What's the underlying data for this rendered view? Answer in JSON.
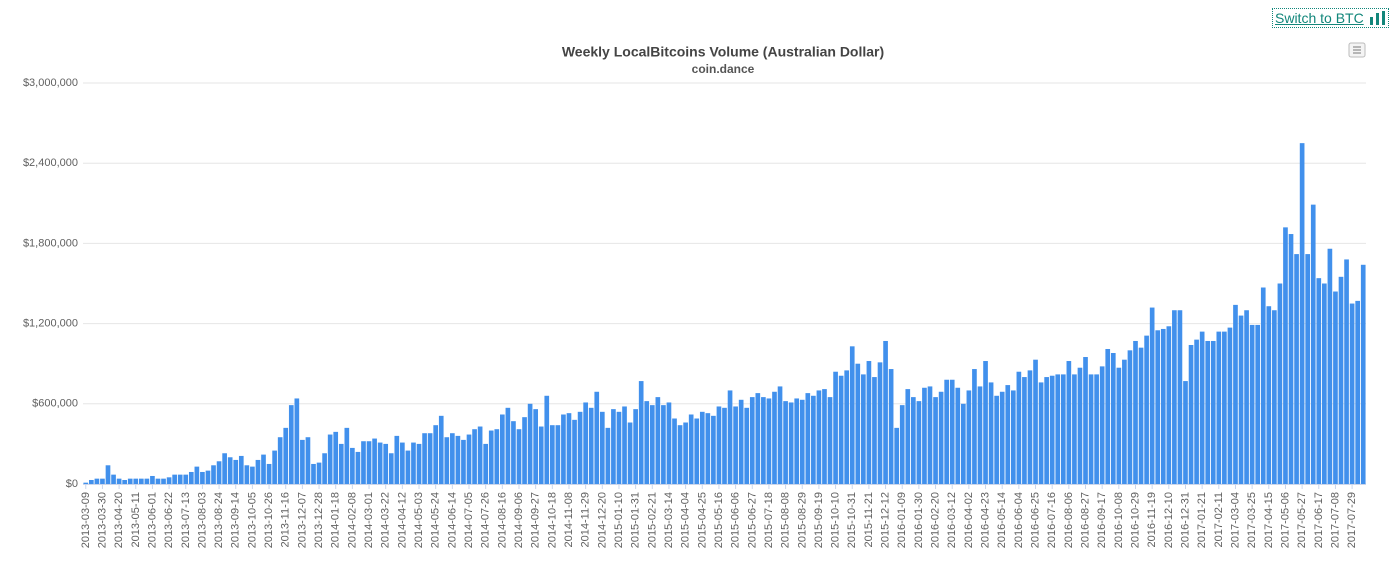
{
  "switch_link": "Switch to BTC",
  "chart_data": {
    "type": "bar",
    "title": "Weekly LocalBitcoins Volume (Australian Dollar)",
    "subtitle": "coin.dance",
    "color": "#4190ec",
    "grid": true,
    "ylim": [
      0,
      3000000
    ],
    "yticks": [
      {
        "value": 0,
        "label": "$0"
      },
      {
        "value": 600000,
        "label": "$600,000"
      },
      {
        "value": 1200000,
        "label": "$1,200,000"
      },
      {
        "value": 1800000,
        "label": "$1,800,000"
      },
      {
        "value": 2400000,
        "label": "$2,400,000"
      },
      {
        "value": 3000000,
        "label": "$3,000,000"
      }
    ],
    "categories": [
      "2013-03-09",
      null,
      null,
      "2013-03-30",
      null,
      null,
      "2013-04-20",
      null,
      null,
      "2013-05-11",
      null,
      null,
      "2013-06-01",
      null,
      null,
      "2013-06-22",
      null,
      null,
      "2013-07-13",
      null,
      null,
      "2013-08-03",
      null,
      null,
      "2013-08-24",
      null,
      null,
      "2013-09-14",
      null,
      null,
      "2013-10-05",
      null,
      null,
      "2013-10-26",
      null,
      null,
      "2013-11-16",
      null,
      null,
      "2013-12-07",
      null,
      null,
      "2013-12-28",
      null,
      null,
      "2014-01-18",
      null,
      null,
      "2014-02-08",
      null,
      null,
      "2014-03-01",
      null,
      null,
      "2014-03-22",
      null,
      null,
      "2014-04-12",
      null,
      null,
      "2014-05-03",
      null,
      null,
      "2014-05-24",
      null,
      null,
      "2014-06-14",
      null,
      null,
      "2014-07-05",
      null,
      null,
      "2014-07-26",
      null,
      null,
      "2014-08-16",
      null,
      null,
      "2014-09-06",
      null,
      null,
      "2014-09-27",
      null,
      null,
      "2014-10-18",
      null,
      null,
      "2014-11-08",
      null,
      null,
      "2014-11-29",
      null,
      null,
      "2014-12-20",
      null,
      null,
      "2015-01-10",
      null,
      null,
      "2015-01-31",
      null,
      null,
      "2015-02-21",
      null,
      null,
      "2015-03-14",
      null,
      null,
      "2015-04-04",
      null,
      null,
      "2015-04-25",
      null,
      null,
      "2015-05-16",
      null,
      null,
      "2015-06-06",
      null,
      null,
      "2015-06-27",
      null,
      null,
      "2015-07-18",
      null,
      null,
      "2015-08-08",
      null,
      null,
      "2015-08-29",
      null,
      null,
      "2015-09-19",
      null,
      null,
      "2015-10-10",
      null,
      null,
      "2015-10-31",
      null,
      null,
      "2015-11-21",
      null,
      null,
      "2015-12-12",
      null,
      null,
      "2016-01-09",
      null,
      null,
      "2016-01-30",
      null,
      null,
      "2016-02-20",
      null,
      null,
      "2016-03-12",
      null,
      null,
      "2016-04-02",
      null,
      null,
      "2016-04-23",
      null,
      null,
      "2016-05-14",
      null,
      null,
      "2016-06-04",
      null,
      null,
      "2016-06-25",
      null,
      null,
      "2016-07-16",
      null,
      null,
      "2016-08-06",
      null,
      null,
      "2016-08-27",
      null,
      null,
      "2016-09-17",
      null,
      null,
      "2016-10-08",
      null,
      null,
      "2016-10-29",
      null,
      null,
      "2016-11-19",
      null,
      null,
      "2016-12-10",
      null,
      null,
      "2016-12-31",
      null,
      null,
      "2017-01-21",
      null,
      null,
      "2017-02-11",
      null,
      null,
      "2017-03-04",
      null,
      null,
      "2017-03-25",
      null,
      null,
      "2017-04-15",
      null,
      null,
      "2017-05-06",
      null,
      null,
      "2017-05-27",
      null,
      null,
      "2017-06-17",
      null,
      null,
      "2017-07-08",
      null,
      null,
      "2017-07-29",
      null,
      null
    ],
    "values": [
      10000,
      30000,
      40000,
      40000,
      140000,
      70000,
      40000,
      30000,
      40000,
      40000,
      40000,
      40000,
      60000,
      40000,
      40000,
      50000,
      70000,
      70000,
      70000,
      90000,
      130000,
      90000,
      100000,
      140000,
      170000,
      230000,
      200000,
      180000,
      210000,
      140000,
      130000,
      180000,
      220000,
      150000,
      250000,
      350000,
      420000,
      590000,
      640000,
      330000,
      350000,
      150000,
      160000,
      230000,
      370000,
      390000,
      300000,
      420000,
      270000,
      240000,
      320000,
      320000,
      340000,
      310000,
      300000,
      230000,
      360000,
      310000,
      250000,
      310000,
      300000,
      380000,
      380000,
      440000,
      510000,
      350000,
      380000,
      360000,
      330000,
      370000,
      410000,
      430000,
      300000,
      400000,
      410000,
      520000,
      570000,
      470000,
      410000,
      500000,
      600000,
      560000,
      430000,
      660000,
      440000,
      440000,
      520000,
      530000,
      480000,
      540000,
      610000,
      570000,
      690000,
      540000,
      420000,
      560000,
      540000,
      580000,
      460000,
      560000,
      770000,
      620000,
      590000,
      650000,
      590000,
      610000,
      490000,
      440000,
      460000,
      520000,
      490000,
      540000,
      530000,
      510000,
      580000,
      570000,
      700000,
      580000,
      630000,
      570000,
      650000,
      680000,
      650000,
      640000,
      690000,
      730000,
      620000,
      610000,
      640000,
      630000,
      680000,
      660000,
      700000,
      710000,
      650000,
      840000,
      810000,
      850000,
      1030000,
      900000,
      820000,
      920000,
      800000,
      910000,
      1070000,
      860000,
      420000,
      590000,
      710000,
      650000,
      620000,
      720000,
      730000,
      650000,
      690000,
      780000,
      780000,
      720000,
      600000,
      700000,
      860000,
      730000,
      920000,
      760000,
      660000,
      690000,
      740000,
      700000,
      840000,
      800000,
      850000,
      930000,
      760000,
      800000,
      810000,
      820000,
      820000,
      920000,
      820000,
      870000,
      950000,
      820000,
      820000,
      880000,
      1010000,
      980000,
      870000,
      930000,
      1000000,
      1070000,
      1020000,
      1110000,
      1320000,
      1150000,
      1160000,
      1180000,
      1300000,
      1300000,
      770000,
      1040000,
      1080000,
      1140000,
      1070000,
      1070000,
      1140000,
      1140000,
      1170000,
      1340000,
      1260000,
      1300000,
      1190000,
      1190000,
      1470000,
      1330000,
      1300000,
      1500000,
      1920000,
      1870000,
      1720000,
      2550000,
      1720000,
      2090000,
      1540000,
      1500000,
      1760000,
      1440000,
      1550000,
      1680000,
      1350000,
      1370000,
      1640000
    ]
  }
}
